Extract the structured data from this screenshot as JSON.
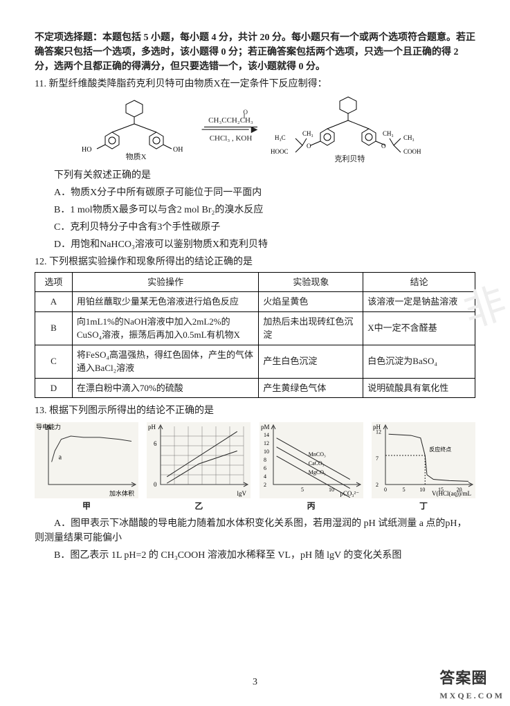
{
  "header": {
    "line1": "不定项选择题：本题包括 5 小题，每小题 4 分，共计 20 分。每小题只有一个或两个选项符合题意。若正确答案只包括一个选项，多选时，该小题得 0 分；若正确答案包括两个选项，只选一个且正确的得 2 分，选两个且都正确的得满分，但只要选错一个，该小题就得 0 分。"
  },
  "q11": {
    "stem": "11. 新型纤维酸类降脂药克利贝特可由物质X在一定条件下反应制得：",
    "reagent_top": "CH₃CCH₂CH₃",
    "reagent_top_pre": "O",
    "reagent_bottom": "CHCl₃ , KOH",
    "left_label": "物质X",
    "right_label": "克利贝特",
    "left_groups": {
      "oh1": "HO",
      "oh2": "OH"
    },
    "right_groups": {
      "g1": "H₃C",
      "g2": "HOOC",
      "g3": "CH₃",
      "g4": "CH₃",
      "g5": "CH₃",
      "g6": "COOH",
      "o1": "O",
      "o2": "O"
    },
    "lead": "下列有关叙述正确的是",
    "A": "A．物质X分子中所有碳原子可能位于同一平面内",
    "B": "B．1 mol物质X最多可以与含2 mol Br₂的溴水反应",
    "C": "C．克利贝特分子中含有3个手性碳原子",
    "D": "D．用饱和NaHCO₃溶液可以鉴别物质X和克利贝特"
  },
  "q12": {
    "stem": "12. 下列根据实验操作和现象所得出的结论正确的是",
    "columns": [
      "选项",
      "实验操作",
      "实验现象",
      "结论"
    ],
    "rows": [
      [
        "A",
        "用铂丝蘸取少量某无色溶液进行焰色反应",
        "火焰呈黄色",
        "该溶液一定是钠盐溶液"
      ],
      [
        "B",
        "向1mL1%的NaOH溶液中加入2mL2%的CuSO₄溶液，振荡后再加入0.5mL有机物X",
        "加热后未出现砖红色沉淀",
        "X中一定不含醛基"
      ],
      [
        "C",
        "将FeSO₄高温强热，得红色固体，产生的气体通入BaCl₂溶液",
        "产生白色沉淀",
        "白色沉淀为BaSO₄"
      ],
      [
        "D",
        "在漂白粉中滴入70%的硫酸",
        "产生黄绿色气体",
        "说明硫酸具有氧化性"
      ]
    ],
    "col_widths": [
      "50px",
      "250px",
      "140px",
      "150px"
    ]
  },
  "q13": {
    "stem": "13. 根据下列图示所得出的结论不正确的是",
    "charts": [
      {
        "name": "甲",
        "type": "curve",
        "xlabel": "加水体积",
        "ylabel": "导电能力",
        "point_label": "a",
        "background": "#f5f4ef",
        "axis_color": "#333333",
        "curve_color": "#333333",
        "curve": [
          [
            5,
            55
          ],
          [
            10,
            38
          ],
          [
            20,
            20
          ],
          [
            35,
            15
          ],
          [
            55,
            17
          ],
          [
            80,
            17
          ],
          [
            110,
            20
          ],
          [
            130,
            23
          ]
        ]
      },
      {
        "name": "乙",
        "type": "lines-grid",
        "xlabel": "lgV",
        "ylabel": "pH",
        "yticks": [
          0,
          6
        ],
        "background": "#f5f4ef",
        "axis_color": "#333333",
        "grid_color": "#555555",
        "line_color": "#222222",
        "lines": [
          [
            [
              10,
              78
            ],
            [
              120,
              8
            ]
          ],
          [
            [
              10,
              88
            ],
            [
              60,
              58
            ],
            [
              120,
              38
            ]
          ]
        ]
      },
      {
        "name": "丙",
        "type": "parallel-lines",
        "xlabel": "pCO₃²⁻",
        "ylabel": "pM",
        "yticks": [
          2,
          4,
          6,
          8,
          10,
          12,
          14
        ],
        "xticks": [
          5,
          10
        ],
        "background": "#f5f4ef",
        "axis_color": "#333333",
        "line_color": "#222222",
        "lines_labels": [
          "MnCO₃",
          "CaCO₃",
          "MgCO₃"
        ],
        "lines": [
          [
            [
              5,
              18
            ],
            [
              120,
              82
            ]
          ],
          [
            [
              5,
              32
            ],
            [
              120,
              96
            ]
          ],
          [
            [
              5,
              46
            ],
            [
              120,
              110
            ]
          ]
        ]
      },
      {
        "name": "丁",
        "type": "titration",
        "xlabel": "V(HCl(aq))/mL",
        "ylabel": "pH",
        "yticks": [
          2,
          7,
          12
        ],
        "xticks": [
          0,
          5,
          10,
          15,
          20
        ],
        "point_label": "反应终点",
        "background": "#f5f4ef",
        "axis_color": "#333333",
        "curve_color": "#222222",
        "curve": [
          [
            5,
            12
          ],
          [
            40,
            14
          ],
          [
            55,
            18
          ],
          [
            62,
            45
          ],
          [
            65,
            75
          ],
          [
            75,
            82
          ],
          [
            100,
            84
          ],
          [
            130,
            85
          ]
        ]
      }
    ],
    "A": "A．图甲表示下冰醋酸的导电能力随着加水体积变化关系图，若用湿润的 pH 试纸测量 a 点的pH，则测量结果可能偏小",
    "B": "B．图乙表示 1L pH=2 的 CH₃COOH 溶液加水稀释至 VL，pH 随 lgV 的变化关系图"
  },
  "pagenum": "3",
  "watermark": {
    "main": "答案圈",
    "sub": "MXQE.COM"
  }
}
